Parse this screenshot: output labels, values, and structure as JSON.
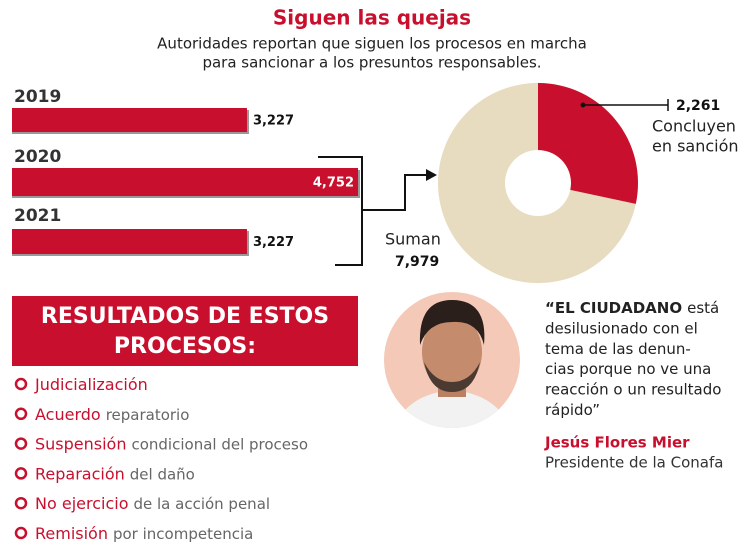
{
  "header": {
    "title": "Siguen las quejas",
    "subtitle": [
      "Autoridades reportan que siguen los procesos en marcha",
      "para sancionar a los presuntos responsables."
    ]
  },
  "chart_data": [
    {
      "type": "bar",
      "orientation": "horizontal",
      "categories": [
        "2019",
        "2020",
        "2021"
      ],
      "values": [
        3227,
        4752,
        3227
      ],
      "value_labels": [
        "3,227",
        "4,752",
        "3,227"
      ],
      "color": "#c8102e"
    },
    {
      "type": "pie",
      "slices": [
        {
          "name": [
            "Concluyen",
            "en sanción"
          ],
          "value": 2261,
          "value_label": "2,261",
          "color": "#c8102e"
        }
      ],
      "total": {
        "name": "Suman",
        "value": 7979,
        "value_label": "7,979",
        "color": "#e8dcc0"
      }
    }
  ],
  "results": {
    "title": [
      "RESULTADOS DE ESTOS",
      "PROCESOS:"
    ],
    "items": [
      {
        "highlight": "Judicialización",
        "rest": ""
      },
      {
        "highlight": "Acuerdo",
        "rest": "reparatorio"
      },
      {
        "highlight": "Suspensión",
        "rest": "condicional del proceso"
      },
      {
        "highlight": "Reparación",
        "rest": "del daño"
      },
      {
        "highlight": "No ejercicio",
        "rest": "de la acción penal"
      },
      {
        "highlight": "Remisión",
        "rest": "por incompetencia"
      }
    ]
  },
  "quote": {
    "lead": "“EL CIUDADANO",
    "lines": [
      "está",
      "desilusionado con el",
      "tema de las denun-",
      "cias porque no ve una",
      "reacción o un resultado",
      "rápido”"
    ],
    "author": "Jesús Flores Mier",
    "role": "Presidente de la Conafa"
  }
}
